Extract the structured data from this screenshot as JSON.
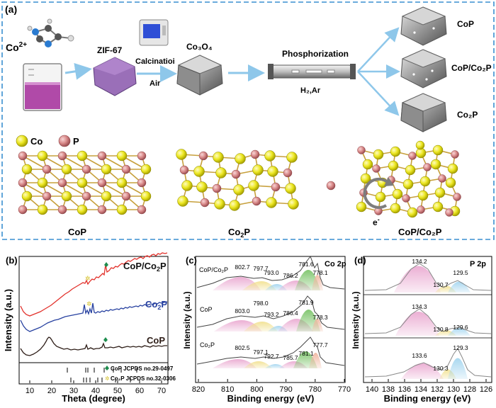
{
  "panel_a": {
    "label": "(a)",
    "co_ion": "Co",
    "co_ion_sup": "2+",
    "zif": "ZIF-67",
    "calcination": "Calcinatioi",
    "air": "Air",
    "co3o4": "Co₃O₄",
    "phosphorization": "Phosphorization",
    "gas": "H₂,Ar",
    "product_cop": "CoP",
    "product_hetero": "CoP/Co₂P",
    "product_co2p": "Co₂P",
    "legend_co": "Co",
    "legend_p": "P",
    "struct_cop": "CoP",
    "struct_co2p_main": "Co",
    "struct_co2p_sub": "2",
    "struct_co2p_tail": "P",
    "struct_hetero": "CoP/Co₂P",
    "electron": "e",
    "electron_sup": "-",
    "colors": {
      "co": "#e8e41a",
      "p": "#d98a8a",
      "bond": "#c7a03c",
      "frame": "#3a8fd0",
      "arrow": "#8ec7ea",
      "zif": "#9a6fb8"
    }
  },
  "panel_b": {
    "label": "(b)",
    "y_label": "Intensity (a.u.)",
    "x_label": "Theta (degree)",
    "x_ticks": [
      "10",
      "20",
      "30",
      "40",
      "50",
      "60",
      "70"
    ],
    "series": [
      {
        "name": "CoP/Co₂P",
        "color": "#e2312b"
      },
      {
        "name": "Co₂P",
        "color": "#2741a0"
      },
      {
        "name": "CoP",
        "color": "#2d1d17"
      }
    ],
    "label_hetero": "CoP/Co",
    "label_hetero_sub": "2",
    "label_hetero_tail": "P",
    "label_co2p": "Co",
    "label_co2p_sub": "2",
    "label_co2p_tail": "P",
    "label_cop": "CoP",
    "ref1": "CoP JCPDS no.29-0497",
    "ref2": "Co₂P JCPDS no.32-0306"
  },
  "panel_c": {
    "label": "(c)",
    "title": "Co 2p",
    "y_label": "Intensity (a.u.)",
    "x_label": "Binding energy (eV)",
    "x_ticks": [
      "820",
      "810",
      "800",
      "790",
      "780",
      "770"
    ],
    "row1_name": "CoP/Co₂P",
    "row1_peaks": [
      "802.7",
      "797.7",
      "793.0",
      "786.2",
      "781.6",
      "778.1"
    ],
    "row2_name": "CoP",
    "row2_peaks": [
      "803.0",
      "798.0",
      "793.2",
      "786.4",
      "781.9",
      "778.3"
    ],
    "row3_name": "Co₂P",
    "row3_peaks": [
      "802.5",
      "797.1",
      "792.7",
      "785.7",
      "781.1",
      "777.7"
    ]
  },
  "panel_d": {
    "label": "(d)",
    "title": "P 2p",
    "y_label": "Intensity (a.u.)",
    "x_label": "Binding energy (eV)",
    "x_ticks": [
      "140",
      "138",
      "136",
      "134",
      "132",
      "130",
      "128",
      "126"
    ],
    "row1_peaks": [
      "134.2",
      "130.7",
      "129.5"
    ],
    "row2_peaks": [
      "134.3",
      "130.8",
      "129.6"
    ],
    "row3_peaks": [
      "133.6",
      "130.3",
      "129.3"
    ]
  }
}
